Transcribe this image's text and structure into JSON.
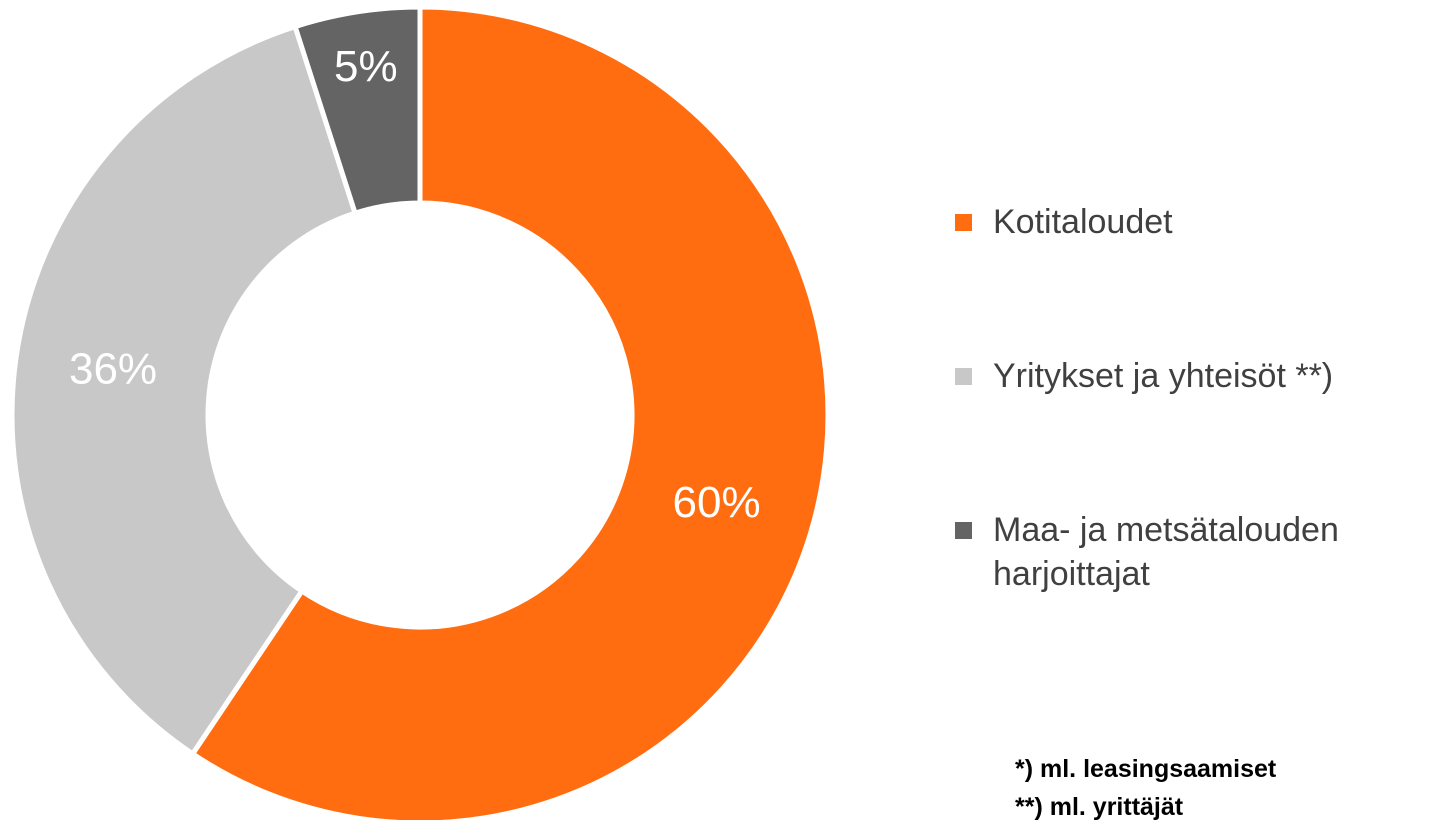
{
  "chart_data": {
    "type": "donut",
    "categories": [
      "Kotitaloudet",
      "Yritykset ja yhteisöt **)",
      "Maa- ja metsätalouden harjoittajat"
    ],
    "values": [
      60,
      36,
      5
    ],
    "value_labels": [
      "60%",
      "36%",
      "5%"
    ],
    "colors": [
      "#ff6d10",
      "#c8c8c8",
      "#646464"
    ],
    "notes": [
      "*) ml. leasingsaamiset",
      "**) ml. yrittäjät"
    ]
  }
}
